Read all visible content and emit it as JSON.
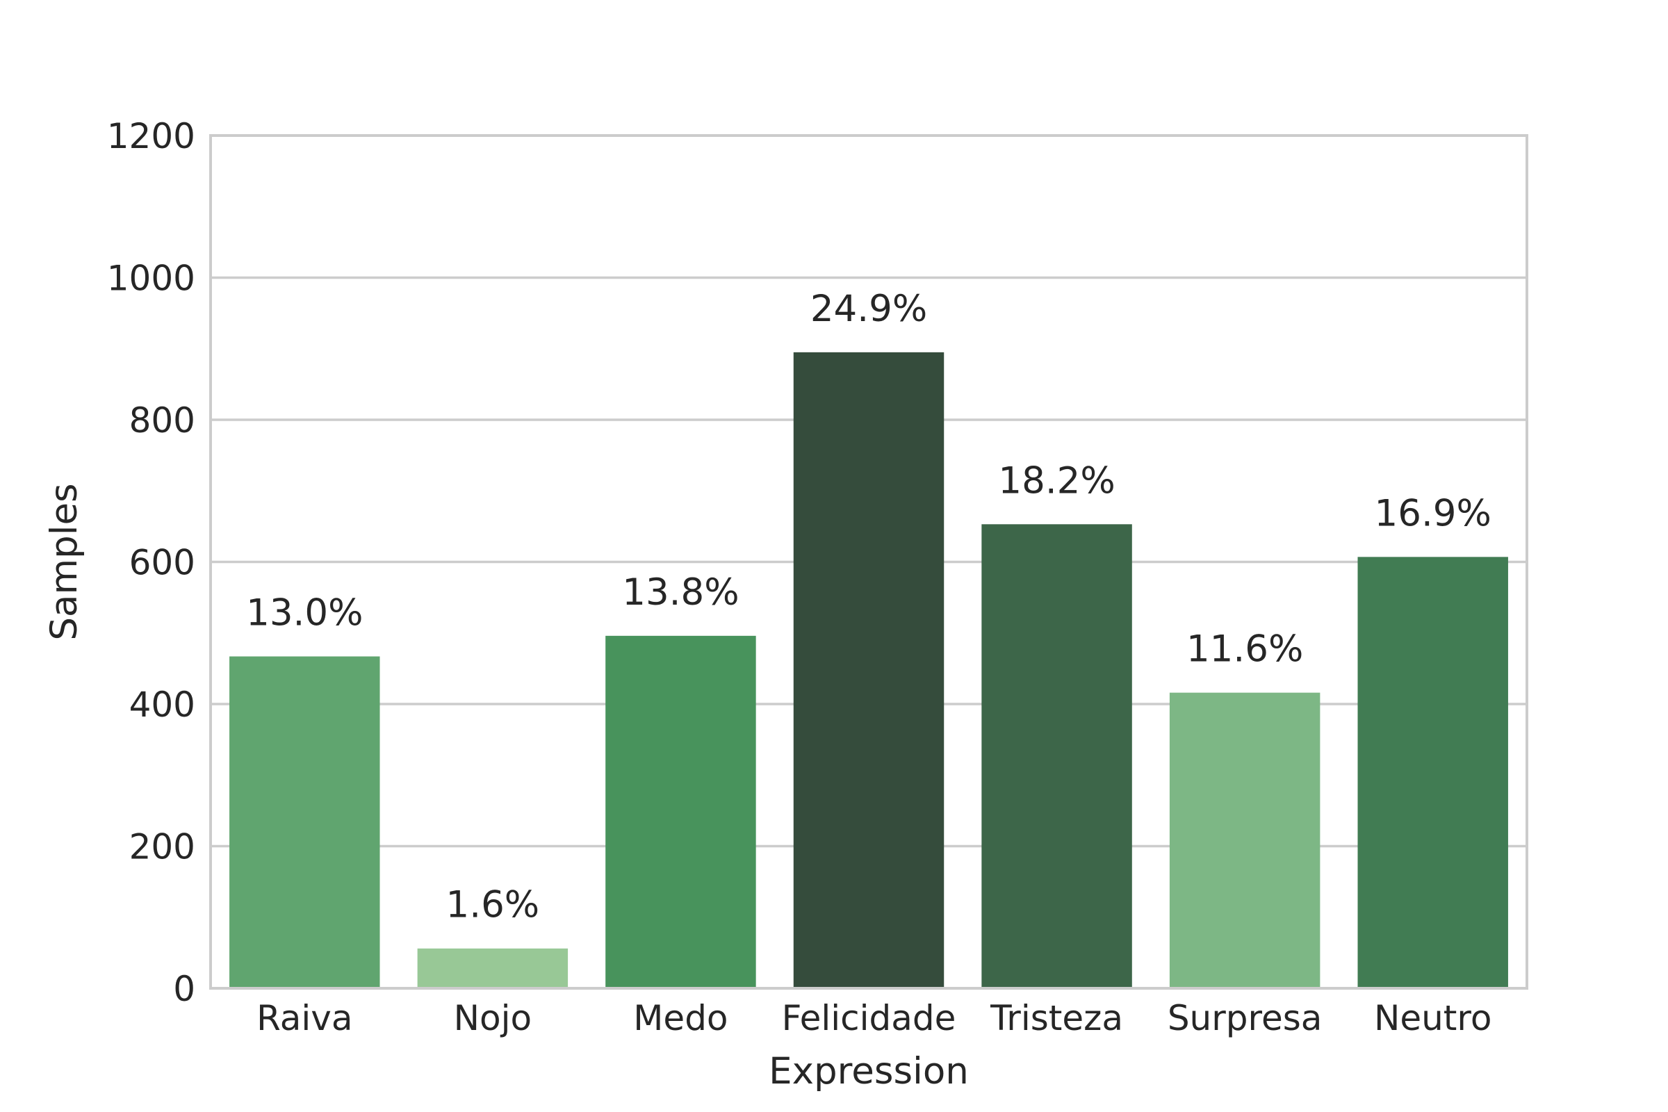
{
  "chart_data": {
    "type": "bar",
    "title": "",
    "xlabel": "Expression",
    "ylabel": "Samples",
    "categories": [
      "Raiva",
      "Nojo",
      "Medo",
      "Felicidade",
      "Tristeza",
      "Surpresa",
      "Neutro"
    ],
    "values": [
      467,
      56,
      496,
      895,
      653,
      416,
      607
    ],
    "data_labels": [
      "13.0%",
      "1.6%",
      "13.8%",
      "24.9%",
      "18.2%",
      "11.6%",
      "16.9%"
    ],
    "colors": [
      "#60a56f",
      "#98c896",
      "#48935c",
      "#354c3c",
      "#3d6649",
      "#7db785",
      "#417c53"
    ],
    "ylim": [
      0,
      1200
    ],
    "yticks": [
      0,
      200,
      400,
      600,
      800,
      1000,
      1200
    ],
    "ytick_labels": [
      "0",
      "200",
      "400",
      "600",
      "800",
      "1000",
      "1200"
    ],
    "grid": "horizontal",
    "legend": "none"
  }
}
